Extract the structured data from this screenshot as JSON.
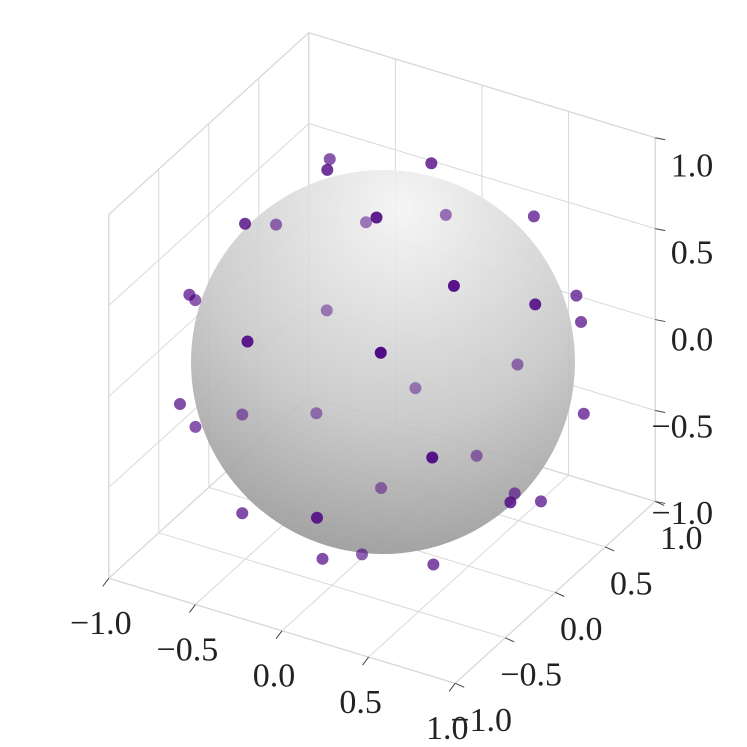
{
  "chart_data": {
    "type": "scatter3d",
    "color": "#4b0082",
    "grid": true,
    "x": [
      -0.55,
      -0.31,
      0.1,
      -0.6,
      -0.86,
      0.13,
      -0.56,
      -0.18,
      0.49,
      -0.91,
      -0.98,
      0.6,
      0.85,
      0.77,
      0.82,
      -0.7,
      -0.28,
      0.42,
      0.28,
      -0.24,
      -0.82,
      -0.83,
      -0.61,
      0.94,
      -0.8,
      0.7,
      0.2,
      -0.19,
      0.57,
      0.88,
      0.86,
      -0.42,
      0.15,
      -0.02,
      0.0,
      0.47
    ],
    "y": [
      0.43,
      -0.01,
      0.32,
      -0.33,
      0.43,
      -0.28,
      0.81,
      0.95,
      0.67,
      -0.35,
      -0.17,
      -0.32,
      0.06,
      0.61,
      0.57,
      0.66,
      -0.86,
      -0.74,
      0.87,
      0.75,
      -0.6,
      0.04,
      0.4,
      0.39,
      -0.48,
      -0.71,
      0.6,
      0.32,
      0.34,
      -0.24,
      0.1,
      -0.67,
      -0.91,
      -0.56,
      -0.2,
      -0.3
    ],
    "z": [
      0.72,
      0.95,
      0.94,
      0.73,
      0.27,
      0.95,
      0.18,
      0.26,
      0.585,
      0.26,
      0.12,
      0.73,
      0.51,
      0.26,
      0.15,
      -0.27,
      0.44,
      0.52,
      -0.39,
      -0.61,
      -0.19,
      -0.57,
      -0.68,
      -0.23,
      -0.37,
      0.01,
      -0.78,
      -0.93,
      -0.75,
      -0.42,
      -0.59,
      -0.64,
      -0.38,
      -0.83,
      -0.98,
      -0.85
    ],
    "xlim": [
      -1,
      1
    ],
    "ylim": [
      -1,
      1
    ],
    "zlim": [
      -1,
      1
    ],
    "xticks": [
      {
        "value": -1,
        "label": "−1.0"
      },
      {
        "value": -0.5,
        "label": "−0.5"
      },
      {
        "value": 0,
        "label": "0.0"
      },
      0.5,
      {
        "value": 1,
        "label": "1.0"
      }
    ],
    "yticks": [
      {
        "value": -1,
        "label": "−1.0"
      },
      {
        "value": -0.5,
        "label": "−0.5"
      },
      {
        "value": 0,
        "label": "0.0"
      },
      0.5,
      {
        "value": 1,
        "label": "1.0"
      }
    ],
    "zticks": [
      {
        "value": -1,
        "label": "−1.0"
      },
      {
        "value": -0.5,
        "label": "−0.5"
      },
      {
        "value": 0,
        "label": "0.0"
      },
      0.5,
      {
        "value": 1,
        "label": "1.0"
      }
    ]
  }
}
